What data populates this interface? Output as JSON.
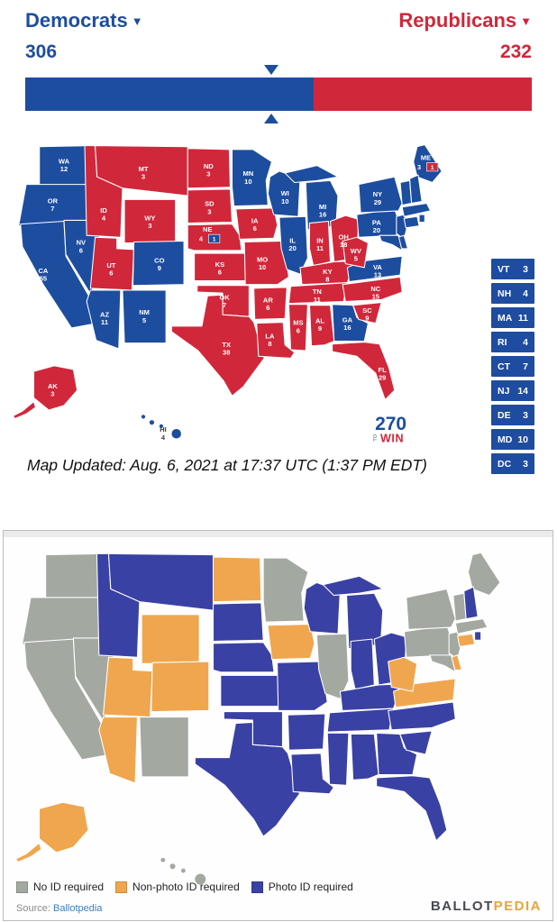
{
  "header": {
    "left_party": "Democrats",
    "right_party": "Republicans",
    "left_total": "306",
    "right_total": "232",
    "left_color": "#1d4d9f",
    "right_color": "#d1273a",
    "bar": {
      "blue_percent": 56.9,
      "marker_percent": 48.6
    }
  },
  "electoral_map": {
    "updated_text": "Map Updated: Aug. 6, 2021 at 17:37 UTC (1:37 PM EDT)",
    "logo": {
      "number": "270",
      "to": "TO",
      "win": "WIN"
    },
    "splits": {
      "NE": {
        "main_ev": 4,
        "main_party": "R",
        "district_ev": 1,
        "district_party": "D"
      },
      "ME": {
        "main_ev": 3,
        "main_party": "D",
        "district_ev": 1,
        "district_party": "R"
      }
    },
    "side_list": [
      {
        "abbr": "VT",
        "ev": 3
      },
      {
        "abbr": "NH",
        "ev": 4
      },
      {
        "abbr": "MA",
        "ev": 11
      },
      {
        "abbr": "RI",
        "ev": 4
      },
      {
        "abbr": "CT",
        "ev": 7
      },
      {
        "abbr": "NJ",
        "ev": 14
      },
      {
        "abbr": "DE",
        "ev": 3
      },
      {
        "abbr": "MD",
        "ev": 10
      },
      {
        "abbr": "DC",
        "ev": 3
      }
    ],
    "states": [
      {
        "abbr": "WA",
        "ev": 12,
        "party": "D",
        "voter_id": "none"
      },
      {
        "abbr": "OR",
        "ev": 7,
        "party": "D",
        "voter_id": "none"
      },
      {
        "abbr": "CA",
        "ev": 55,
        "party": "D",
        "voter_id": "none"
      },
      {
        "abbr": "NV",
        "ev": 6,
        "party": "D",
        "voter_id": "none"
      },
      {
        "abbr": "ID",
        "ev": 4,
        "party": "R",
        "voter_id": "photo"
      },
      {
        "abbr": "MT",
        "ev": 3,
        "party": "R",
        "voter_id": "photo"
      },
      {
        "abbr": "WY",
        "ev": 3,
        "party": "R",
        "voter_id": "nonphoto"
      },
      {
        "abbr": "UT",
        "ev": 6,
        "party": "R",
        "voter_id": "nonphoto"
      },
      {
        "abbr": "CO",
        "ev": 9,
        "party": "D",
        "voter_id": "nonphoto"
      },
      {
        "abbr": "AZ",
        "ev": 11,
        "party": "D",
        "voter_id": "nonphoto"
      },
      {
        "abbr": "NM",
        "ev": 5,
        "party": "D",
        "voter_id": "none"
      },
      {
        "abbr": "ND",
        "ev": 3,
        "party": "R",
        "voter_id": "nonphoto"
      },
      {
        "abbr": "SD",
        "ev": 3,
        "party": "R",
        "voter_id": "photo"
      },
      {
        "abbr": "NE",
        "ev": 4,
        "party": "R",
        "voter_id": "photo",
        "split": true
      },
      {
        "abbr": "KS",
        "ev": 6,
        "party": "R",
        "voter_id": "photo"
      },
      {
        "abbr": "OK",
        "ev": 7,
        "party": "R",
        "voter_id": "photo"
      },
      {
        "abbr": "TX",
        "ev": 38,
        "party": "R",
        "voter_id": "photo"
      },
      {
        "abbr": "MN",
        "ev": 10,
        "party": "D",
        "voter_id": "none"
      },
      {
        "abbr": "IA",
        "ev": 6,
        "party": "R",
        "voter_id": "nonphoto"
      },
      {
        "abbr": "MO",
        "ev": 10,
        "party": "R",
        "voter_id": "photo"
      },
      {
        "abbr": "AR",
        "ev": 6,
        "party": "R",
        "voter_id": "photo"
      },
      {
        "abbr": "LA",
        "ev": 8,
        "party": "R",
        "voter_id": "photo"
      },
      {
        "abbr": "WI",
        "ev": 10,
        "party": "D",
        "voter_id": "photo"
      },
      {
        "abbr": "IL",
        "ev": 20,
        "party": "D",
        "voter_id": "none"
      },
      {
        "abbr": "MS",
        "ev": 6,
        "party": "R",
        "voter_id": "photo"
      },
      {
        "abbr": "MI",
        "ev": 16,
        "party": "D",
        "voter_id": "photo"
      },
      {
        "abbr": "IN",
        "ev": 11,
        "party": "R",
        "voter_id": "photo"
      },
      {
        "abbr": "OH",
        "ev": 18,
        "party": "R",
        "voter_id": "photo"
      },
      {
        "abbr": "KY",
        "ev": 8,
        "party": "R",
        "voter_id": "photo"
      },
      {
        "abbr": "TN",
        "ev": 11,
        "party": "R",
        "voter_id": "photo"
      },
      {
        "abbr": "AL",
        "ev": 9,
        "party": "R",
        "voter_id": "photo"
      },
      {
        "abbr": "GA",
        "ev": 16,
        "party": "D",
        "voter_id": "photo"
      },
      {
        "abbr": "FL",
        "ev": 29,
        "party": "R",
        "voter_id": "photo"
      },
      {
        "abbr": "SC",
        "ev": 9,
        "party": "R",
        "voter_id": "photo"
      },
      {
        "abbr": "NC",
        "ev": 15,
        "party": "R",
        "voter_id": "photo"
      },
      {
        "abbr": "VA",
        "ev": 13,
        "party": "D",
        "voter_id": "nonphoto"
      },
      {
        "abbr": "WV",
        "ev": 5,
        "party": "R",
        "voter_id": "nonphoto"
      },
      {
        "abbr": "PA",
        "ev": 20,
        "party": "D",
        "voter_id": "none"
      },
      {
        "abbr": "NY",
        "ev": 29,
        "party": "D",
        "voter_id": "none"
      },
      {
        "abbr": "NJ",
        "ev": 14,
        "party": "D",
        "voter_id": "none",
        "side": true
      },
      {
        "abbr": "ME",
        "ev": 3,
        "party": "D",
        "voter_id": "none",
        "split": true
      },
      {
        "abbr": "VT",
        "ev": 3,
        "party": "D",
        "voter_id": "none",
        "side": true
      },
      {
        "abbr": "NH",
        "ev": 4,
        "party": "D",
        "voter_id": "photo",
        "side": true
      },
      {
        "abbr": "MA",
        "ev": 11,
        "party": "D",
        "voter_id": "none",
        "side": true
      },
      {
        "abbr": "CT",
        "ev": 7,
        "party": "D",
        "voter_id": "nonphoto",
        "side": true
      },
      {
        "abbr": "RI",
        "ev": 4,
        "party": "D",
        "voter_id": "photo",
        "side": true
      },
      {
        "abbr": "DE",
        "ev": 3,
        "party": "D",
        "voter_id": "nonphoto",
        "side": true
      },
      {
        "abbr": "MD",
        "ev": 10,
        "party": "D",
        "voter_id": "none",
        "side": true
      },
      {
        "abbr": "DC",
        "ev": 3,
        "party": "D",
        "voter_id": "none",
        "side": true
      },
      {
        "abbr": "AK",
        "ev": 3,
        "party": "R",
        "voter_id": "nonphoto"
      },
      {
        "abbr": "HI",
        "ev": 4,
        "party": "D",
        "voter_id": "none"
      }
    ]
  },
  "voter_id_map": {
    "legend": [
      {
        "key": "none",
        "label": "No ID required",
        "color": "#a3a8a0"
      },
      {
        "key": "nonphoto",
        "label": "Non-photo ID required",
        "color": "#f0a64e"
      },
      {
        "key": "photo",
        "label": "Photo ID required",
        "color": "#3a41a4"
      }
    ],
    "source_prefix": "Source:",
    "source_name": "Ballotpedia",
    "brand": {
      "ballot": "BALLOT",
      "pedia": "PEDIA",
      "ballot_color": "#474952",
      "pedia_color": "#e7a43c"
    }
  }
}
